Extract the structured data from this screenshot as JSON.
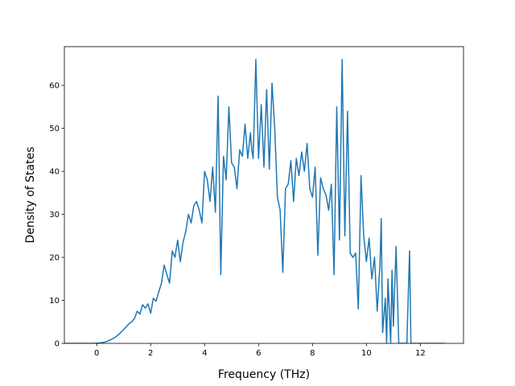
{
  "chart_data": {
    "type": "line",
    "title": "",
    "xlabel": "Frequency (THz)",
    "ylabel": "Density of States",
    "xlim": [
      -1.2,
      13.6
    ],
    "ylim": [
      0,
      69
    ],
    "xticks": [
      0,
      2,
      4,
      6,
      8,
      10,
      12
    ],
    "yticks": [
      0,
      10,
      20,
      30,
      40,
      50,
      60
    ],
    "grid": false,
    "legend": "none",
    "line_color": "#1f77b4",
    "series": [
      {
        "x": [
          -1.2,
          -1.0,
          -0.8,
          -0.6,
          -0.4,
          -0.2,
          0.0,
          0.1,
          0.2,
          0.3,
          0.4,
          0.5,
          0.6,
          0.7,
          0.8,
          0.9,
          1.0,
          1.1,
          1.2,
          1.3,
          1.4,
          1.5,
          1.6,
          1.7,
          1.8,
          1.9,
          2.0,
          2.1,
          2.2,
          2.3,
          2.4,
          2.5,
          2.6,
          2.7,
          2.8,
          2.9,
          3.0,
          3.1,
          3.2,
          3.3,
          3.4,
          3.5,
          3.6,
          3.7,
          3.8,
          3.9,
          4.0,
          4.1,
          4.2,
          4.3,
          4.4,
          4.5,
          4.6,
          4.7,
          4.8,
          4.9,
          5.0,
          5.1,
          5.2,
          5.3,
          5.4,
          5.5,
          5.6,
          5.7,
          5.75,
          5.8,
          5.9,
          6.0,
          6.1,
          6.2,
          6.3,
          6.4,
          6.5,
          6.6,
          6.7,
          6.8,
          6.9,
          7.0,
          7.1,
          7.2,
          7.3,
          7.4,
          7.5,
          7.6,
          7.7,
          7.8,
          7.9,
          8.0,
          8.1,
          8.2,
          8.3,
          8.4,
          8.5,
          8.6,
          8.7,
          8.8,
          8.9,
          9.0,
          9.1,
          9.2,
          9.3,
          9.4,
          9.5,
          9.6,
          9.7,
          9.8,
          9.9,
          10.0,
          10.1,
          10.2,
          10.3,
          10.4,
          10.5,
          10.55,
          10.6,
          10.7,
          10.75,
          10.8,
          10.9,
          10.95,
          11.0,
          11.1,
          11.2,
          11.3,
          11.5,
          11.6,
          11.65,
          11.7,
          11.8,
          12.0,
          12.5,
          12.9
        ],
        "y": [
          0,
          0,
          0,
          0,
          0,
          0,
          0.05,
          0.1,
          0.2,
          0.3,
          0.5,
          0.8,
          1.1,
          1.5,
          2.0,
          2.6,
          3.2,
          3.9,
          4.6,
          5.0,
          5.8,
          7.5,
          6.8,
          9.0,
          8.2,
          9.2,
          7.0,
          10.5,
          9.8,
          12.0,
          14.0,
          18.2,
          16.0,
          14.0,
          21.5,
          20.0,
          24.0,
          19.0,
          23.5,
          26.0,
          30.0,
          28.0,
          32.0,
          33.0,
          31.0,
          28.0,
          40.0,
          38.0,
          33.0,
          41.0,
          30.5,
          57.5,
          16.0,
          43.5,
          38.0,
          55.0,
          42.0,
          41.0,
          36.0,
          45.0,
          43.5,
          51.0,
          43.0,
          49.0,
          45.0,
          43.0,
          66.0,
          43.0,
          55.5,
          41.0,
          59.0,
          40.5,
          60.5,
          50.0,
          34.0,
          31.0,
          16.5,
          36.0,
          37.0,
          42.5,
          33.0,
          43.0,
          39.0,
          44.5,
          40.0,
          46.5,
          36.0,
          34.0,
          41.0,
          20.5,
          38.5,
          36.0,
          34.5,
          31.0,
          37.0,
          16.0,
          55.0,
          24.0,
          66.0,
          25.0,
          54.0,
          21.0,
          20.0,
          21.0,
          8.0,
          39.0,
          25.0,
          19.0,
          24.5,
          15.0,
          20.0,
          7.5,
          18.0,
          29.0,
          2.5,
          10.5,
          0,
          15.0,
          0,
          17.0,
          4.0,
          22.5,
          0,
          0,
          0,
          21.5,
          0,
          0,
          0,
          0,
          0,
          0
        ]
      }
    ]
  }
}
